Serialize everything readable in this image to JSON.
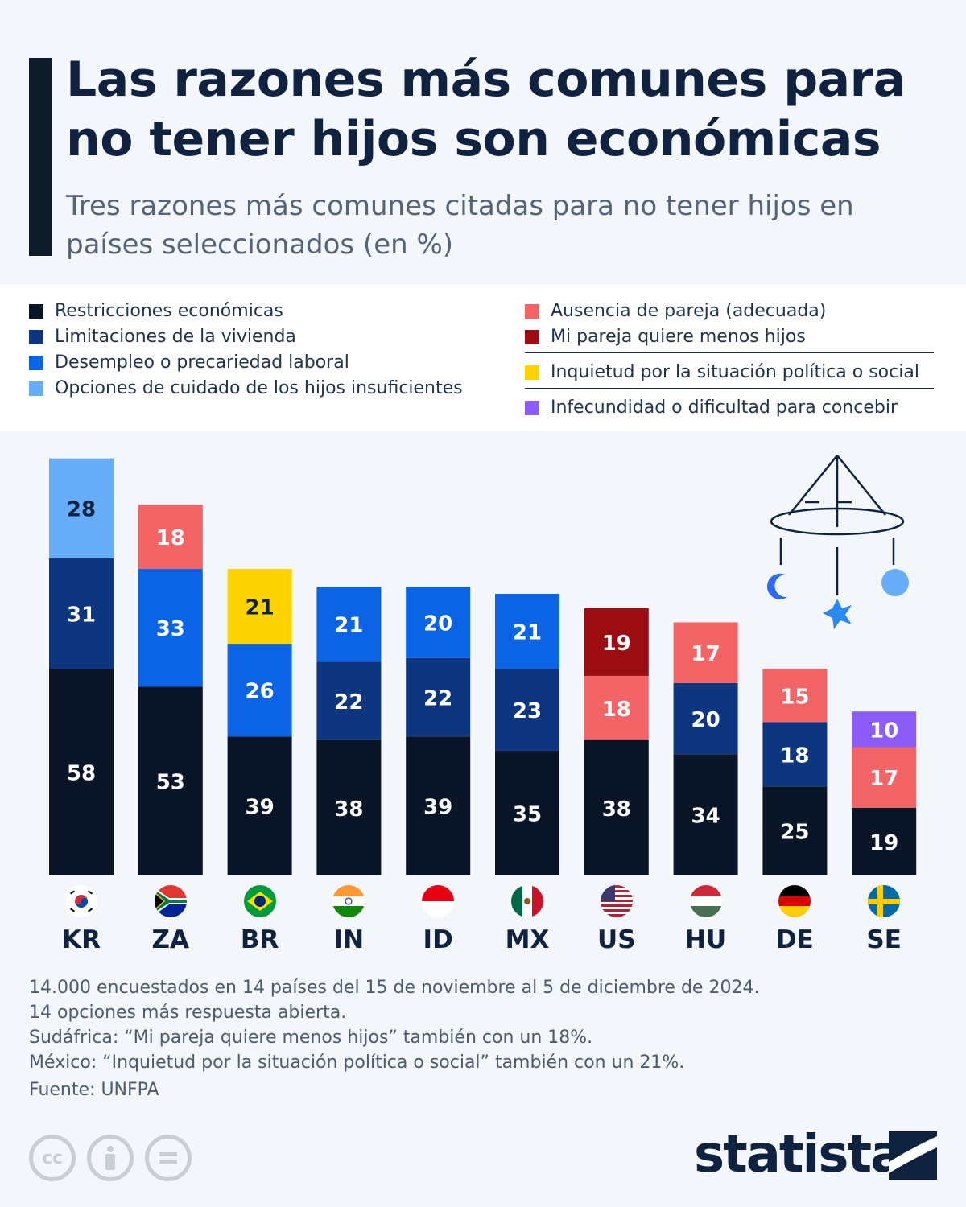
{
  "title": "Las razones más comunes para no tener hijos son económicas",
  "subtitle": "Tres razones más comunes citadas para no tener hijos en países seleccionados (en %)",
  "legend": {
    "left": [
      {
        "label": "Restricciones económicas",
        "color": "#0a1628"
      },
      {
        "label": "Limitaciones de la vivienda",
        "color": "#0d3580"
      },
      {
        "label": "Desempleo o precariedad laboral",
        "color": "#0b63e6"
      },
      {
        "label": "Opciones de cuidado de los hijos insuficientes",
        "color": "#66adf7"
      }
    ],
    "right": [
      {
        "label": "Ausencia de pareja (adecuada)",
        "color": "#f26466"
      },
      {
        "label": "Mi pareja quiere menos hijos",
        "color": "#9b0d12"
      },
      {
        "label": "Inquietud por la situación política o social",
        "color": "#fdd400"
      },
      {
        "label": "Infecundidad o dificultad para concebir",
        "color": "#8b5cf6"
      }
    ]
  },
  "chart_data": {
    "type": "bar",
    "stacked": true,
    "categories": [
      "KR",
      "ZA",
      "BR",
      "IN",
      "ID",
      "MX",
      "US",
      "HU",
      "DE",
      "SE"
    ],
    "series": [
      {
        "name": "Restricciones económicas",
        "values": [
          58,
          53,
          39,
          38,
          39,
          35,
          38,
          34,
          25,
          19
        ]
      },
      {
        "name": "Limitaciones de la vivienda",
        "values": [
          31,
          null,
          null,
          22,
          22,
          23,
          null,
          20,
          18,
          null
        ]
      },
      {
        "name": "Desempleo o precariedad laboral",
        "values": [
          null,
          33,
          26,
          21,
          20,
          21,
          null,
          null,
          null,
          null
        ]
      },
      {
        "name": "Opciones de cuidado de los hijos insuficientes",
        "values": [
          28,
          null,
          null,
          null,
          null,
          null,
          null,
          null,
          null,
          null
        ]
      },
      {
        "name": "Ausencia de pareja (adecuada)",
        "values": [
          null,
          18,
          null,
          null,
          null,
          null,
          18,
          17,
          15,
          17
        ]
      },
      {
        "name": "Mi pareja quiere menos hijos",
        "values": [
          null,
          null,
          null,
          null,
          null,
          null,
          19,
          null,
          null,
          null
        ]
      },
      {
        "name": "Inquietud por la situación política o social",
        "values": [
          null,
          null,
          21,
          null,
          null,
          null,
          null,
          null,
          null,
          null
        ]
      },
      {
        "name": "Infecundidad o dificultad para concebir",
        "values": [
          null,
          null,
          null,
          null,
          null,
          null,
          null,
          null,
          null,
          10
        ]
      }
    ]
  },
  "flags": [
    "kr",
    "za",
    "br",
    "in",
    "id",
    "mx",
    "us",
    "hu",
    "de",
    "se"
  ],
  "notes": [
    "14.000 encuestados en 14 países del 15 de noviembre al 5 de diciembre de 2024.",
    "14 opciones más respuesta abierta.",
    "Sudáfrica: “Mi pareja quiere menos hijos” también con un 18%.",
    "México: “Inquietud por la situación política o social” también con un 21%."
  ],
  "source": "Fuente: UNFPA",
  "license_icons": [
    "cc",
    "by",
    "nd"
  ],
  "brand": "statista",
  "decoration_icon": "baby-mobile-icon"
}
